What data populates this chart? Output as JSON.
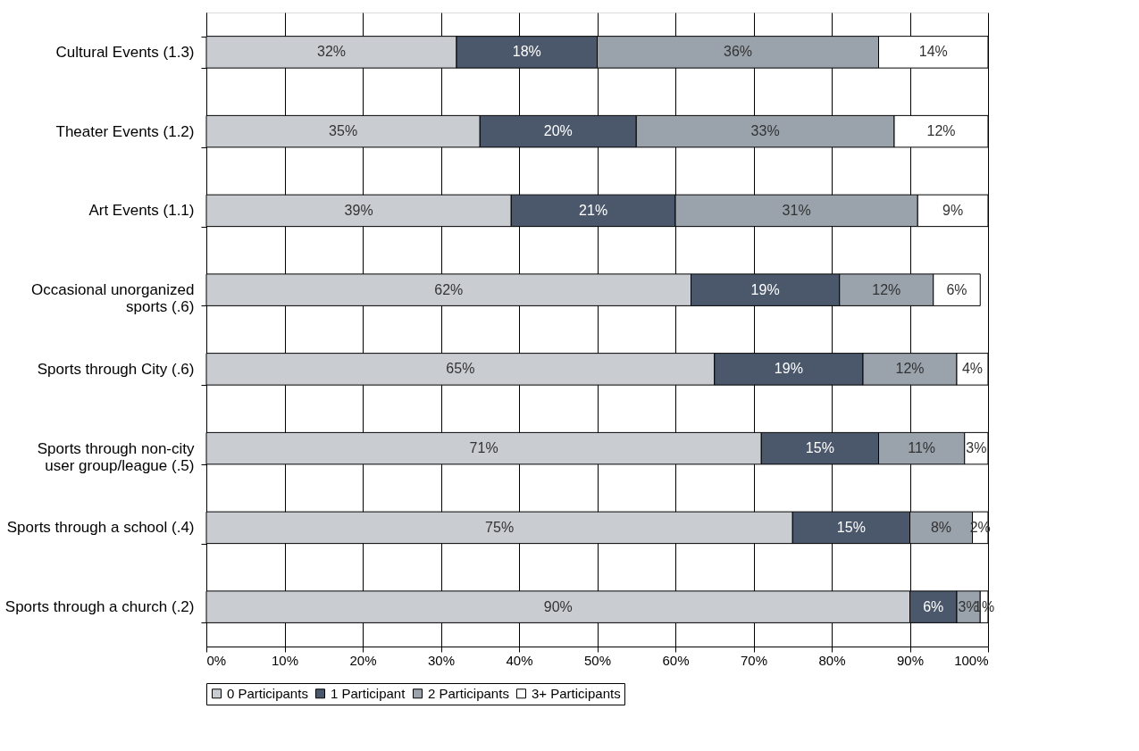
{
  "chart_data": {
    "type": "bar",
    "orientation": "horizontal",
    "stacked": true,
    "categories": [
      "Cultural Events (1.3)",
      "Theater Events (1.2)",
      "Art Events (1.1)",
      "Occasional unorganized sports (.6)",
      "Sports through City (.6)",
      "Sports through non-city user group/league (.5)",
      "Sports through a school (.4)",
      "Sports through a church (.2)"
    ],
    "series": [
      {
        "name": "0 Participants",
        "color": "#c9cdd2",
        "values": [
          32,
          35,
          39,
          62,
          65,
          71,
          75,
          90
        ],
        "value_labels": [
          "32%",
          "35%",
          "39%",
          "62%",
          "65%",
          "71%",
          "75%",
          "90%"
        ]
      },
      {
        "name": "1 Participant",
        "color": "#4b576a",
        "values": [
          18,
          20,
          21,
          19,
          19,
          15,
          15,
          6
        ],
        "value_labels": [
          "18%",
          "20%",
          "21%",
          "19%",
          "19%",
          "15%",
          "15%",
          "6%"
        ]
      },
      {
        "name": "2 Participants",
        "color": "#9aa2ac",
        "values": [
          36,
          33,
          31,
          12,
          12,
          11,
          8,
          3
        ],
        "value_labels": [
          "36%",
          "33%",
          "31%",
          "12%",
          "12%",
          "11%",
          "8%",
          "3%"
        ]
      },
      {
        "name": "3+ Participants",
        "color": "#ffffff",
        "values": [
          14,
          12,
          9,
          6,
          4,
          3,
          2,
          1
        ],
        "value_labels": [
          "14%",
          "12%",
          "9%",
          "6%",
          "4%",
          "3%",
          "2%",
          "1%"
        ]
      }
    ],
    "xlim": [
      0,
      100
    ],
    "xticks": [
      {
        "value": 0,
        "label": "0%"
      },
      {
        "value": 10,
        "label": "10%"
      },
      {
        "value": 20,
        "label": "20%"
      },
      {
        "value": 30,
        "label": "30%"
      },
      {
        "value": 40,
        "label": "40%"
      },
      {
        "value": 50,
        "label": "50%"
      },
      {
        "value": 60,
        "label": "60%"
      },
      {
        "value": 70,
        "label": "70%"
      },
      {
        "value": 80,
        "label": "80%"
      },
      {
        "value": 90,
        "label": "90%"
      },
      {
        "value": 100,
        "label": "100%"
      }
    ],
    "grid": "x",
    "legend": "bottom"
  }
}
